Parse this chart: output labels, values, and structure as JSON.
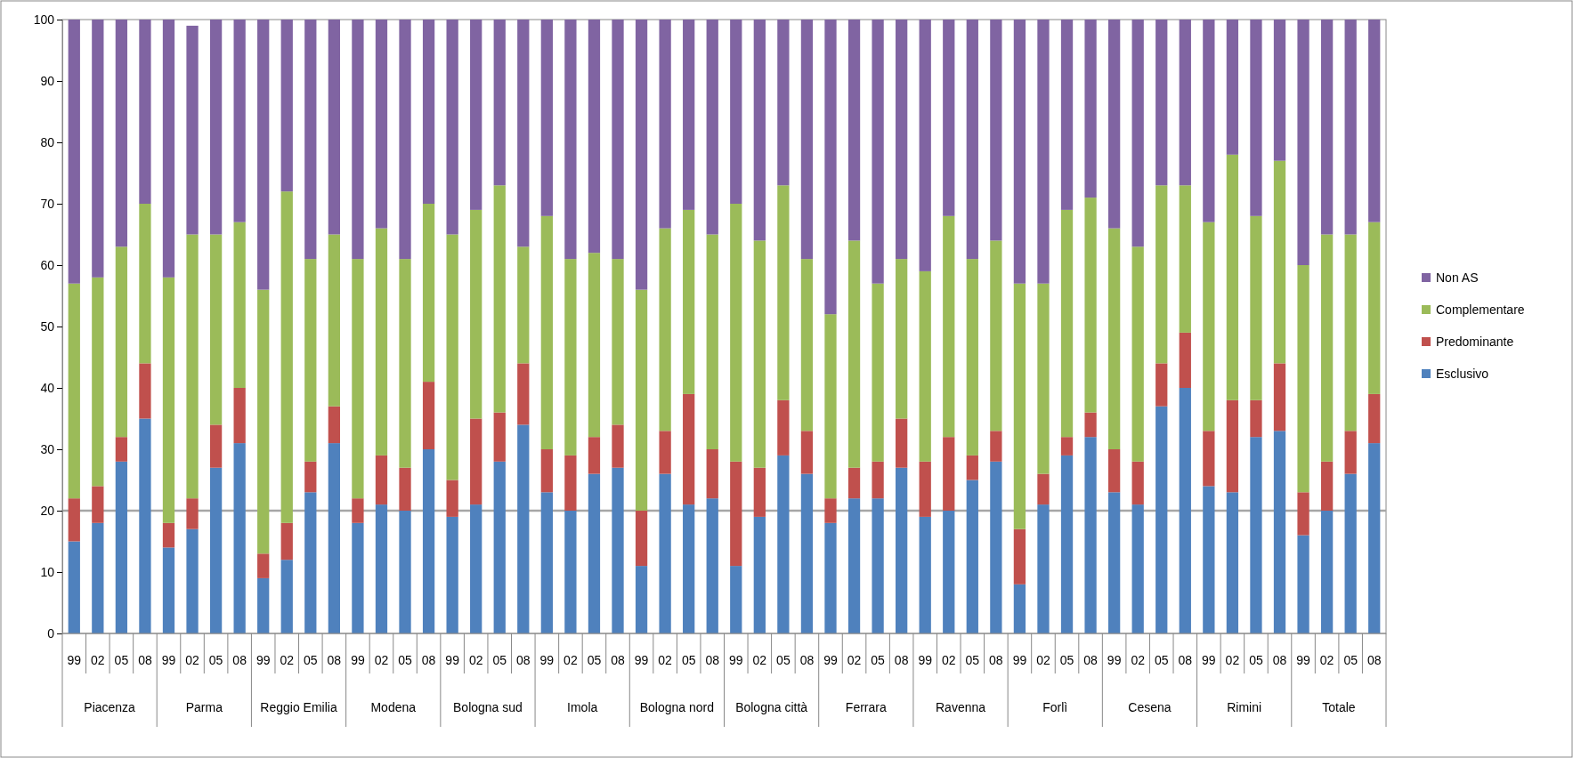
{
  "chart_data": {
    "type": "bar",
    "stacked": true,
    "legend": "right",
    "grid": false,
    "categories": [
      "99",
      "02",
      "05",
      "08",
      "99",
      "02",
      "05",
      "08",
      "99",
      "02",
      "05",
      "08",
      "99",
      "02",
      "05",
      "08",
      "99",
      "02",
      "05",
      "08",
      "99",
      "02",
      "05",
      "08",
      "99",
      "02",
      "05",
      "08",
      "99",
      "02",
      "05",
      "08",
      "99",
      "02",
      "05",
      "08",
      "99",
      "02",
      "05",
      "08",
      "99",
      "02",
      "05",
      "08",
      "99",
      "02",
      "05",
      "08",
      "99",
      "02",
      "05",
      "08",
      "99",
      "02",
      "05",
      "08"
    ],
    "annotations": [
      "Piacenza",
      "Parma",
      "Reggio Emilia",
      "Modena",
      "Bologna sud",
      "Imola",
      "Bologna nord",
      "Bologna città",
      "Ferrara",
      "Ravenna",
      "Forlì",
      "Cesena",
      "Rimini",
      "Totale"
    ],
    "ylim": [
      0,
      100
    ],
    "yticks": [
      0,
      10,
      20,
      30,
      40,
      50,
      60,
      70,
      80,
      90,
      100
    ],
    "ref_lines": [
      {
        "axis": "y",
        "value": 20,
        "color": "#a6a6a6"
      }
    ],
    "series": [
      {
        "name": "Esclusivo",
        "color": "#4f81bd",
        "values": [
          15,
          18,
          28,
          35,
          14,
          17,
          27,
          31,
          9,
          12,
          23,
          31,
          18,
          21,
          20,
          30,
          19,
          21,
          28,
          34,
          23,
          20,
          26,
          27,
          11,
          26,
          21,
          22,
          11,
          19,
          29,
          26,
          18,
          22,
          22,
          27,
          19,
          20,
          25,
          28,
          8,
          21,
          29,
          32,
          23,
          21,
          37,
          40,
          24,
          23,
          32,
          33,
          16,
          20,
          26,
          31
        ]
      },
      {
        "name": "Predominante",
        "color": "#c0504d",
        "values": [
          7,
          6,
          4,
          9,
          4,
          5,
          7,
          9,
          4,
          6,
          5,
          6,
          4,
          8,
          7,
          11,
          6,
          14,
          8,
          10,
          7,
          9,
          6,
          7,
          9,
          7,
          18,
          8,
          17,
          8,
          9,
          7,
          4,
          5,
          6,
          8,
          9,
          12,
          4,
          5,
          9,
          5,
          3,
          4,
          7,
          7,
          7,
          9,
          9,
          15,
          6,
          11,
          7,
          8,
          7,
          8
        ]
      },
      {
        "name": "Complementare",
        "color": "#9bbb59",
        "values": [
          35,
          34,
          31,
          26,
          40,
          43,
          31,
          27,
          43,
          54,
          33,
          28,
          39,
          37,
          34,
          29,
          40,
          34,
          37,
          19,
          38,
          32,
          30,
          27,
          36,
          33,
          30,
          35,
          42,
          37,
          35,
          28,
          30,
          37,
          29,
          26,
          31,
          36,
          32,
          31,
          40,
          31,
          37,
          35,
          36,
          35,
          29,
          24,
          34,
          40,
          30,
          33,
          37,
          37,
          32,
          28
        ]
      },
      {
        "name": "Non AS",
        "color": "#8064a2",
        "values": [
          43,
          42,
          37,
          30,
          42,
          34,
          35,
          33,
          44,
          28,
          39,
          35,
          39,
          34,
          39,
          30,
          35,
          31,
          27,
          37,
          32,
          39,
          38,
          39,
          44,
          34,
          31,
          35,
          30,
          36,
          27,
          39,
          48,
          36,
          43,
          39,
          41,
          32,
          39,
          36,
          43,
          43,
          31,
          29,
          34,
          37,
          27,
          27,
          33,
          22,
          32,
          23,
          40,
          35,
          35,
          33
        ]
      }
    ]
  }
}
